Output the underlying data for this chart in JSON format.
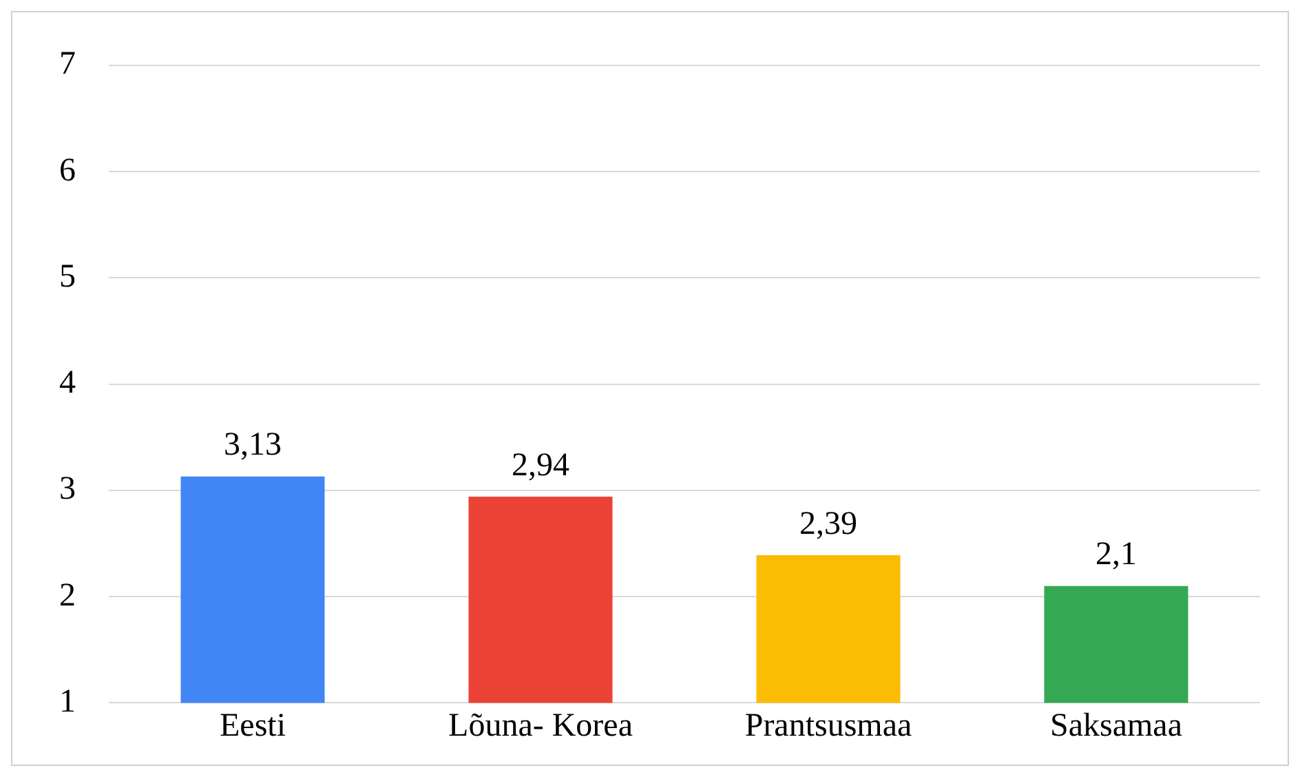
{
  "chart_data": {
    "type": "bar",
    "categories": [
      "Eesti",
      "Lõuna- Korea",
      "Prantsusmaa",
      "Saksamaa"
    ],
    "values": [
      3.13,
      2.94,
      2.39,
      2.1
    ],
    "colors": [
      "#4285f4",
      "#ea4335",
      "#fbbc04",
      "#34a853"
    ],
    "value_labels": [
      "3,13",
      "2,94",
      "2,39",
      "2,1"
    ],
    "ylim": [
      1,
      7
    ],
    "yticks": [
      1,
      2,
      3,
      4,
      5,
      6,
      7
    ],
    "grid": "y"
  }
}
